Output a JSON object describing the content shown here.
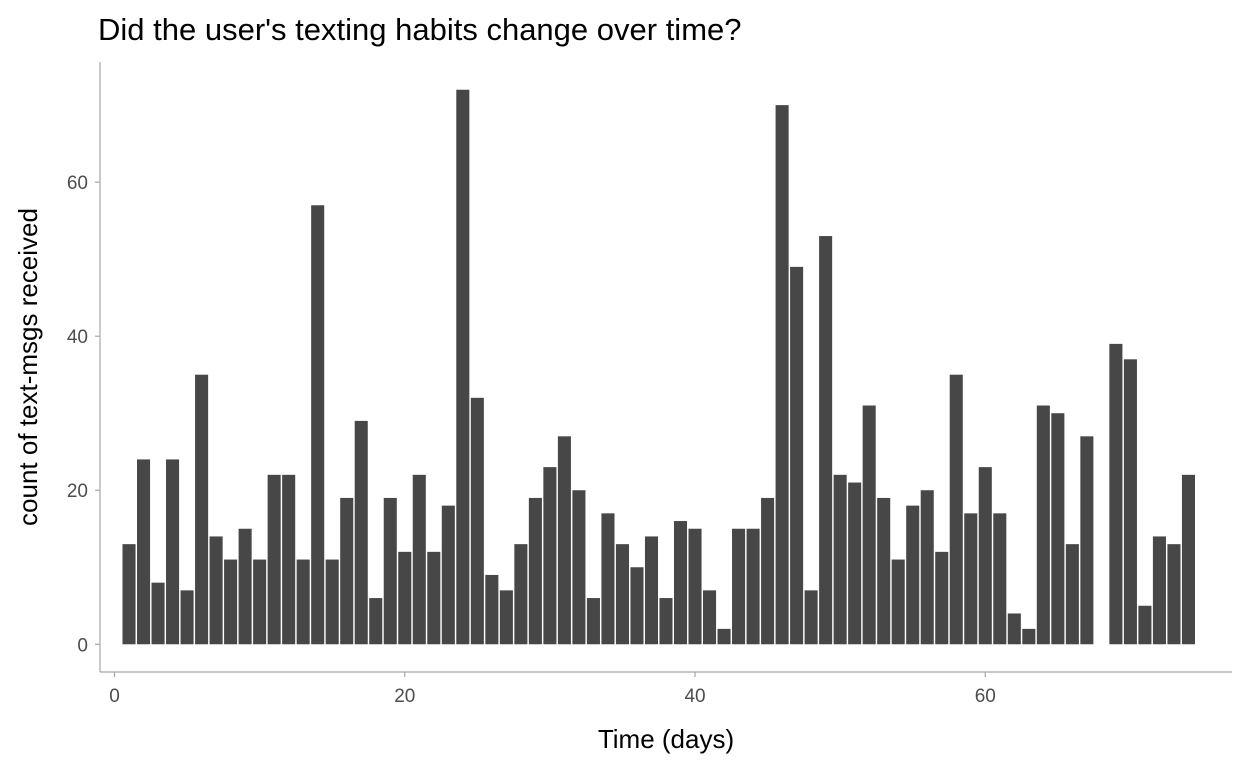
{
  "chart_data": {
    "type": "bar",
    "title": "Did the user's texting habits change over time?",
    "xlabel": "Time (days)",
    "ylabel": "count of text-msgs received",
    "x": [
      1,
      2,
      3,
      4,
      5,
      6,
      7,
      8,
      9,
      10,
      11,
      12,
      13,
      14,
      15,
      16,
      17,
      18,
      19,
      20,
      21,
      22,
      23,
      24,
      25,
      26,
      27,
      28,
      29,
      30,
      31,
      32,
      33,
      34,
      35,
      36,
      37,
      38,
      39,
      40,
      41,
      42,
      43,
      44,
      45,
      46,
      47,
      48,
      49,
      50,
      51,
      52,
      53,
      54,
      55,
      56,
      57,
      58,
      59,
      60,
      61,
      62,
      63,
      64,
      65,
      66,
      67,
      68,
      69,
      70,
      71,
      72,
      73,
      74
    ],
    "values": [
      13,
      24,
      8,
      24,
      7,
      35,
      14,
      11,
      15,
      11,
      22,
      22,
      11,
      57,
      11,
      19,
      29,
      6,
      19,
      12,
      22,
      12,
      18,
      72,
      32,
      9,
      7,
      13,
      19,
      23,
      27,
      20,
      6,
      17,
      13,
      10,
      14,
      6,
      16,
      15,
      7,
      2,
      15,
      15,
      19,
      70,
      49,
      7,
      53,
      22,
      21,
      31,
      19,
      11,
      18,
      20,
      12,
      35,
      17,
      23,
      17,
      4,
      2,
      31,
      30,
      13,
      27,
      0,
      39,
      37,
      5,
      14,
      13,
      22
    ],
    "xlim": [
      -1,
      77
    ],
    "ylim": [
      -3.6,
      75.6
    ],
    "xticks": [
      0,
      20,
      40,
      60
    ],
    "xtick_labels": [
      "0",
      "20",
      "40",
      "60"
    ],
    "yticks": [
      0,
      20,
      40,
      60
    ],
    "ytick_labels": [
      "0",
      "20",
      "40",
      "60"
    ],
    "bar_color": "#474747",
    "grid": false,
    "legend": "none"
  }
}
